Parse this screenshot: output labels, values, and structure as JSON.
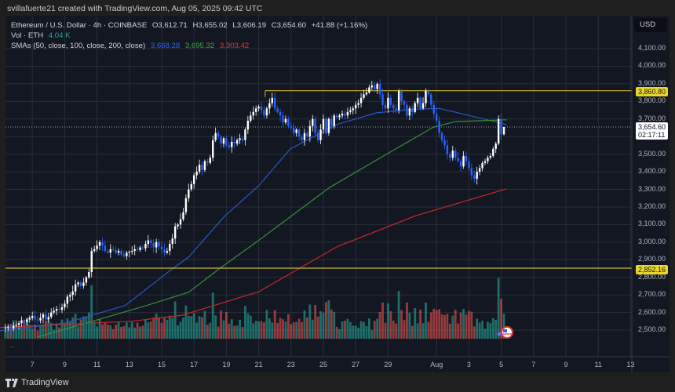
{
  "header": {
    "created_by": "svillafuerte21 created with TradingView.com, Aug 05, 2025 09:42 UTC"
  },
  "legend": {
    "symbol": "Ethereum / U.S. Dollar · 4h · COINBASE",
    "open": "O3,612.71",
    "high": "H3,655.02",
    "low": "L3,606.19",
    "close": "C3,654.60",
    "change": "+41.88 (+1.16%)",
    "vol_label": "Vol · ETH",
    "vol_value": "4.04 K",
    "sma_label": "SMAs (50, close, 100, close, 200, close)",
    "sma50": "3,668.28",
    "sma100": "3,695.32",
    "sma200": "3,303.42"
  },
  "price_axis": {
    "currency_button": "USD",
    "ticks": [
      "4,100.00",
      "4,000.00",
      "3,900.00",
      "3,800.00",
      "3,700.00",
      "3,500.00",
      "3,400.00",
      "3,300.00",
      "3,200.00",
      "3,100.00",
      "3,000.00",
      "2,900.00",
      "2,800.00",
      "2,700.00",
      "2,600.00",
      "2,500.00"
    ],
    "resistance_label": "3,860.80",
    "support_label": "2,852.16",
    "last_price_label": "3,654.60",
    "countdown": "02:17:11"
  },
  "time_axis": {
    "ticks": [
      "7",
      "9",
      "11",
      "13",
      "15",
      "17",
      "19",
      "21",
      "23",
      "25",
      "27",
      "29",
      "Aug",
      "3",
      "5",
      "7",
      "9",
      "11",
      "13"
    ]
  },
  "footer": {
    "brand": "TradingView"
  },
  "more_label": "...",
  "colors": {
    "up": "#ffffff",
    "down": "#2962ff",
    "vol_up": "#26a69a",
    "vol_down": "#ef5350",
    "sma50": "#2a56c6",
    "sma100": "#388e3c",
    "sma200": "#c62828",
    "hline": "#c9b620",
    "bg": "#131722",
    "grid": "#2a2e39"
  },
  "icons": {
    "flag": "us-flag-icon",
    "logo": "tradingview-logo-icon"
  },
  "chart_data": {
    "type": "candlestick",
    "symbol": "ETH/USD",
    "interval": "4h",
    "first_candle": "2025-07-05 08:00",
    "ylim": [
      2500,
      4100
    ],
    "closes": [
      2515,
      2520,
      2510,
      2525,
      2530,
      2540,
      2555,
      2545,
      2560,
      2570,
      2580,
      2560,
      2555,
      2570,
      2590,
      2560,
      2575,
      2600,
      2610,
      2620,
      2615,
      2630,
      2650,
      2690,
      2700,
      2720,
      2760,
      2770,
      2750,
      2770,
      2800,
      2830,
      2950,
      2960,
      2980,
      3000,
      2980,
      2950,
      2940,
      2960,
      2955,
      2940,
      2950,
      2930,
      2920,
      2940,
      2945,
      2950,
      2960,
      2955,
      2970,
      2965,
      2990,
      3010,
      2995,
      2970,
      3000,
      2975,
      2960,
      2940,
      2950,
      2990,
      3020,
      3090,
      3100,
      3130,
      3170,
      3250,
      3300,
      3330,
      3380,
      3400,
      3440,
      3410,
      3460,
      3450,
      3480,
      3580,
      3620,
      3600,
      3560,
      3590,
      3550,
      3540,
      3570,
      3560,
      3580,
      3590,
      3580,
      3640,
      3690,
      3720,
      3740,
      3760,
      3770,
      3750,
      3720,
      3760,
      3790,
      3820,
      3760,
      3740,
      3720,
      3680,
      3700,
      3660,
      3650,
      3620,
      3640,
      3600,
      3580,
      3620,
      3600,
      3660,
      3700,
      3620,
      3580,
      3640,
      3700,
      3620,
      3700,
      3660,
      3720,
      3710,
      3720,
      3730,
      3720,
      3740,
      3750,
      3760,
      3780,
      3790,
      3820,
      3840,
      3850,
      3880,
      3890,
      3870,
      3900,
      3840,
      3780,
      3760,
      3820,
      3780,
      3760,
      3750,
      3860,
      3800,
      3780,
      3720,
      3760,
      3740,
      3790,
      3820,
      3760,
      3790,
      3860,
      3840,
      3780,
      3730,
      3690,
      3620,
      3580,
      3550,
      3500,
      3480,
      3520,
      3480,
      3460,
      3430,
      3490,
      3460,
      3420,
      3380,
      3360,
      3400,
      3420,
      3450,
      3460,
      3480,
      3490,
      3530,
      3560,
      3700,
      3612.71,
      3654.6
    ],
    "last_candle": {
      "open": 3612.71,
      "high": 3655.02,
      "low": 3606.19,
      "close": 3654.6
    },
    "horizontal_lines": [
      3860.8,
      2852.16
    ],
    "sma_series": [
      {
        "name": "SMA 50",
        "points": [
          [
            "07-05 00:00",
            2497
          ],
          [
            "07-09 01:00",
            2540
          ],
          [
            "07-12 18:00",
            2640
          ],
          [
            "07-15 13:00",
            2840
          ],
          [
            "07-16 16:00",
            2915
          ],
          [
            "07-18 22:00",
            3150
          ],
          [
            "07-21 00:00",
            3320
          ],
          [
            "07-22 23:00",
            3530
          ],
          [
            "07-25 21:00",
            3670
          ],
          [
            "07-28 07:00",
            3735
          ],
          [
            "07-30 14:00",
            3755
          ],
          [
            "08-01 04:00",
            3760
          ],
          [
            "08-03 06:00",
            3715
          ],
          [
            "08-04 14:00",
            3685
          ],
          [
            "08-05 08:00",
            3668.28
          ]
        ]
      },
      {
        "name": "SMA 100",
        "points": [
          [
            "07-07 07:00",
            2460
          ],
          [
            "07-10 08:00",
            2540
          ],
          [
            "07-14 02:00",
            2640
          ],
          [
            "07-16 16:00",
            2715
          ],
          [
            "07-18 14:00",
            2850
          ],
          [
            "07-21 00:00",
            3010
          ],
          [
            "07-25 09:00",
            3310
          ],
          [
            "07-28 15:00",
            3485
          ],
          [
            "07-31 20:00",
            3655
          ],
          [
            "08-02 04:00",
            3685
          ],
          [
            "08-05 08:00",
            3695.32
          ]
        ]
      },
      {
        "name": "SMA 200",
        "points": [
          [
            "07-05 00:00",
            2515
          ],
          [
            "07-13 03:00",
            2550
          ],
          [
            "07-16 07:00",
            2585
          ],
          [
            "07-18 14:00",
            2650
          ],
          [
            "07-21 00:00",
            2718
          ],
          [
            "07-25 21:00",
            2975
          ],
          [
            "07-30 17:00",
            3150
          ],
          [
            "08-05 08:00",
            3303.42
          ]
        ]
      }
    ]
  }
}
